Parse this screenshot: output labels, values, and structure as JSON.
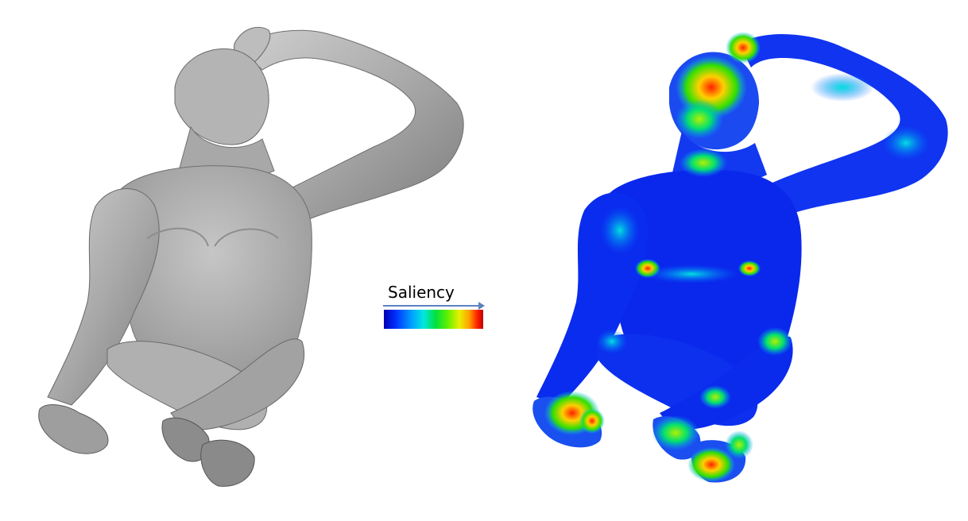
{
  "legend": {
    "label": "Saliency",
    "colors": [
      "#0000b4",
      "#0030ff",
      "#00a0ff",
      "#00e8e0",
      "#00e040",
      "#60f000",
      "#e8f000",
      "#ffa000",
      "#ff2000",
      "#c00000"
    ],
    "arrow_color": "#5b82c0"
  },
  "figures": {
    "left": {
      "description_color": "#a8a8a8"
    },
    "right": {
      "base_color": "#1030f0"
    }
  }
}
